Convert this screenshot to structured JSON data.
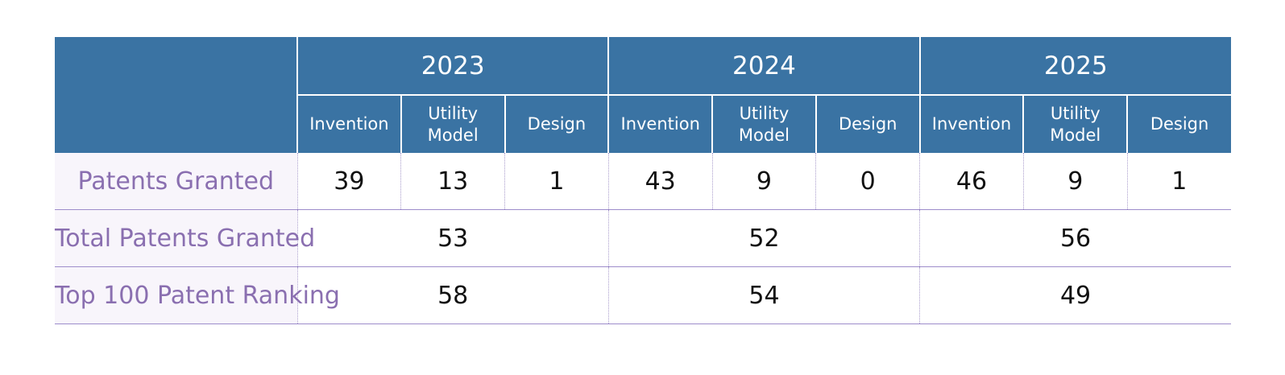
{
  "years": [
    "2023",
    "2024",
    "2025"
  ],
  "sub_headers": [
    "Invention",
    "Utility Model",
    "Design"
  ],
  "rows": {
    "patents_granted": {
      "label": "Patents Granted",
      "values": [
        [
          "39",
          "13",
          "1"
        ],
        [
          "43",
          "9",
          "0"
        ],
        [
          "46",
          "9",
          "1"
        ]
      ]
    },
    "total_patents_granted": {
      "label": "Total Patents Granted",
      "values": [
        "53",
        "52",
        "56"
      ]
    },
    "top_100_patent_ranking": {
      "label": "Top 100 Patent Ranking",
      "values": [
        "58",
        "54",
        "49"
      ]
    }
  },
  "colors": {
    "header_bg": "#3a73a3",
    "label_text": "#8a6fb0",
    "label_bg": "#f8f5fb",
    "row_line": "#9d8ccb"
  }
}
